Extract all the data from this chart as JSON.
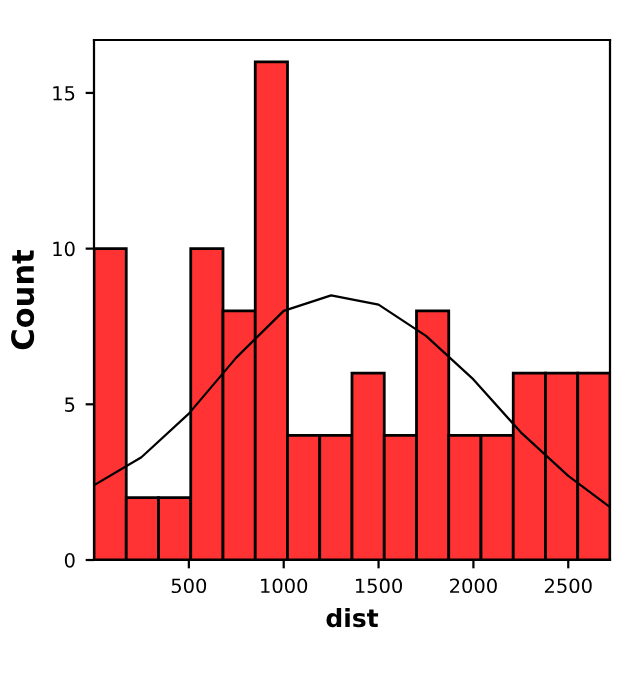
{
  "chart_data": {
    "type": "histogram",
    "xlabel": "dist",
    "ylabel": "Count",
    "bins": [
      0,
      170,
      340,
      510,
      680,
      850,
      1020,
      1190,
      1360,
      1530,
      1700,
      1870,
      2040,
      2210,
      2380,
      2550,
      2720
    ],
    "values": [
      10,
      2,
      2,
      10,
      8,
      16,
      4,
      4,
      6,
      4,
      8,
      4,
      4,
      6,
      6,
      6
    ],
    "color": "#ff3333",
    "series": [
      {
        "type": "line",
        "color": "#000000",
        "x": [
          0,
          250,
          500,
          750,
          1000,
          1250,
          1500,
          1750,
          2000,
          2250,
          2500,
          2720
        ],
        "values": [
          2.4,
          3.3,
          4.7,
          6.5,
          8.0,
          8.5,
          8.2,
          7.2,
          5.8,
          4.1,
          2.7,
          1.7
        ]
      }
    ],
    "xlim": [
      0,
      2720
    ],
    "ylim": [
      0,
      16.7
    ],
    "xticks": [
      500,
      1000,
      1500,
      2000,
      2500
    ],
    "yticks": [
      0,
      5,
      10,
      15
    ],
    "grid": false,
    "legend": false
  }
}
